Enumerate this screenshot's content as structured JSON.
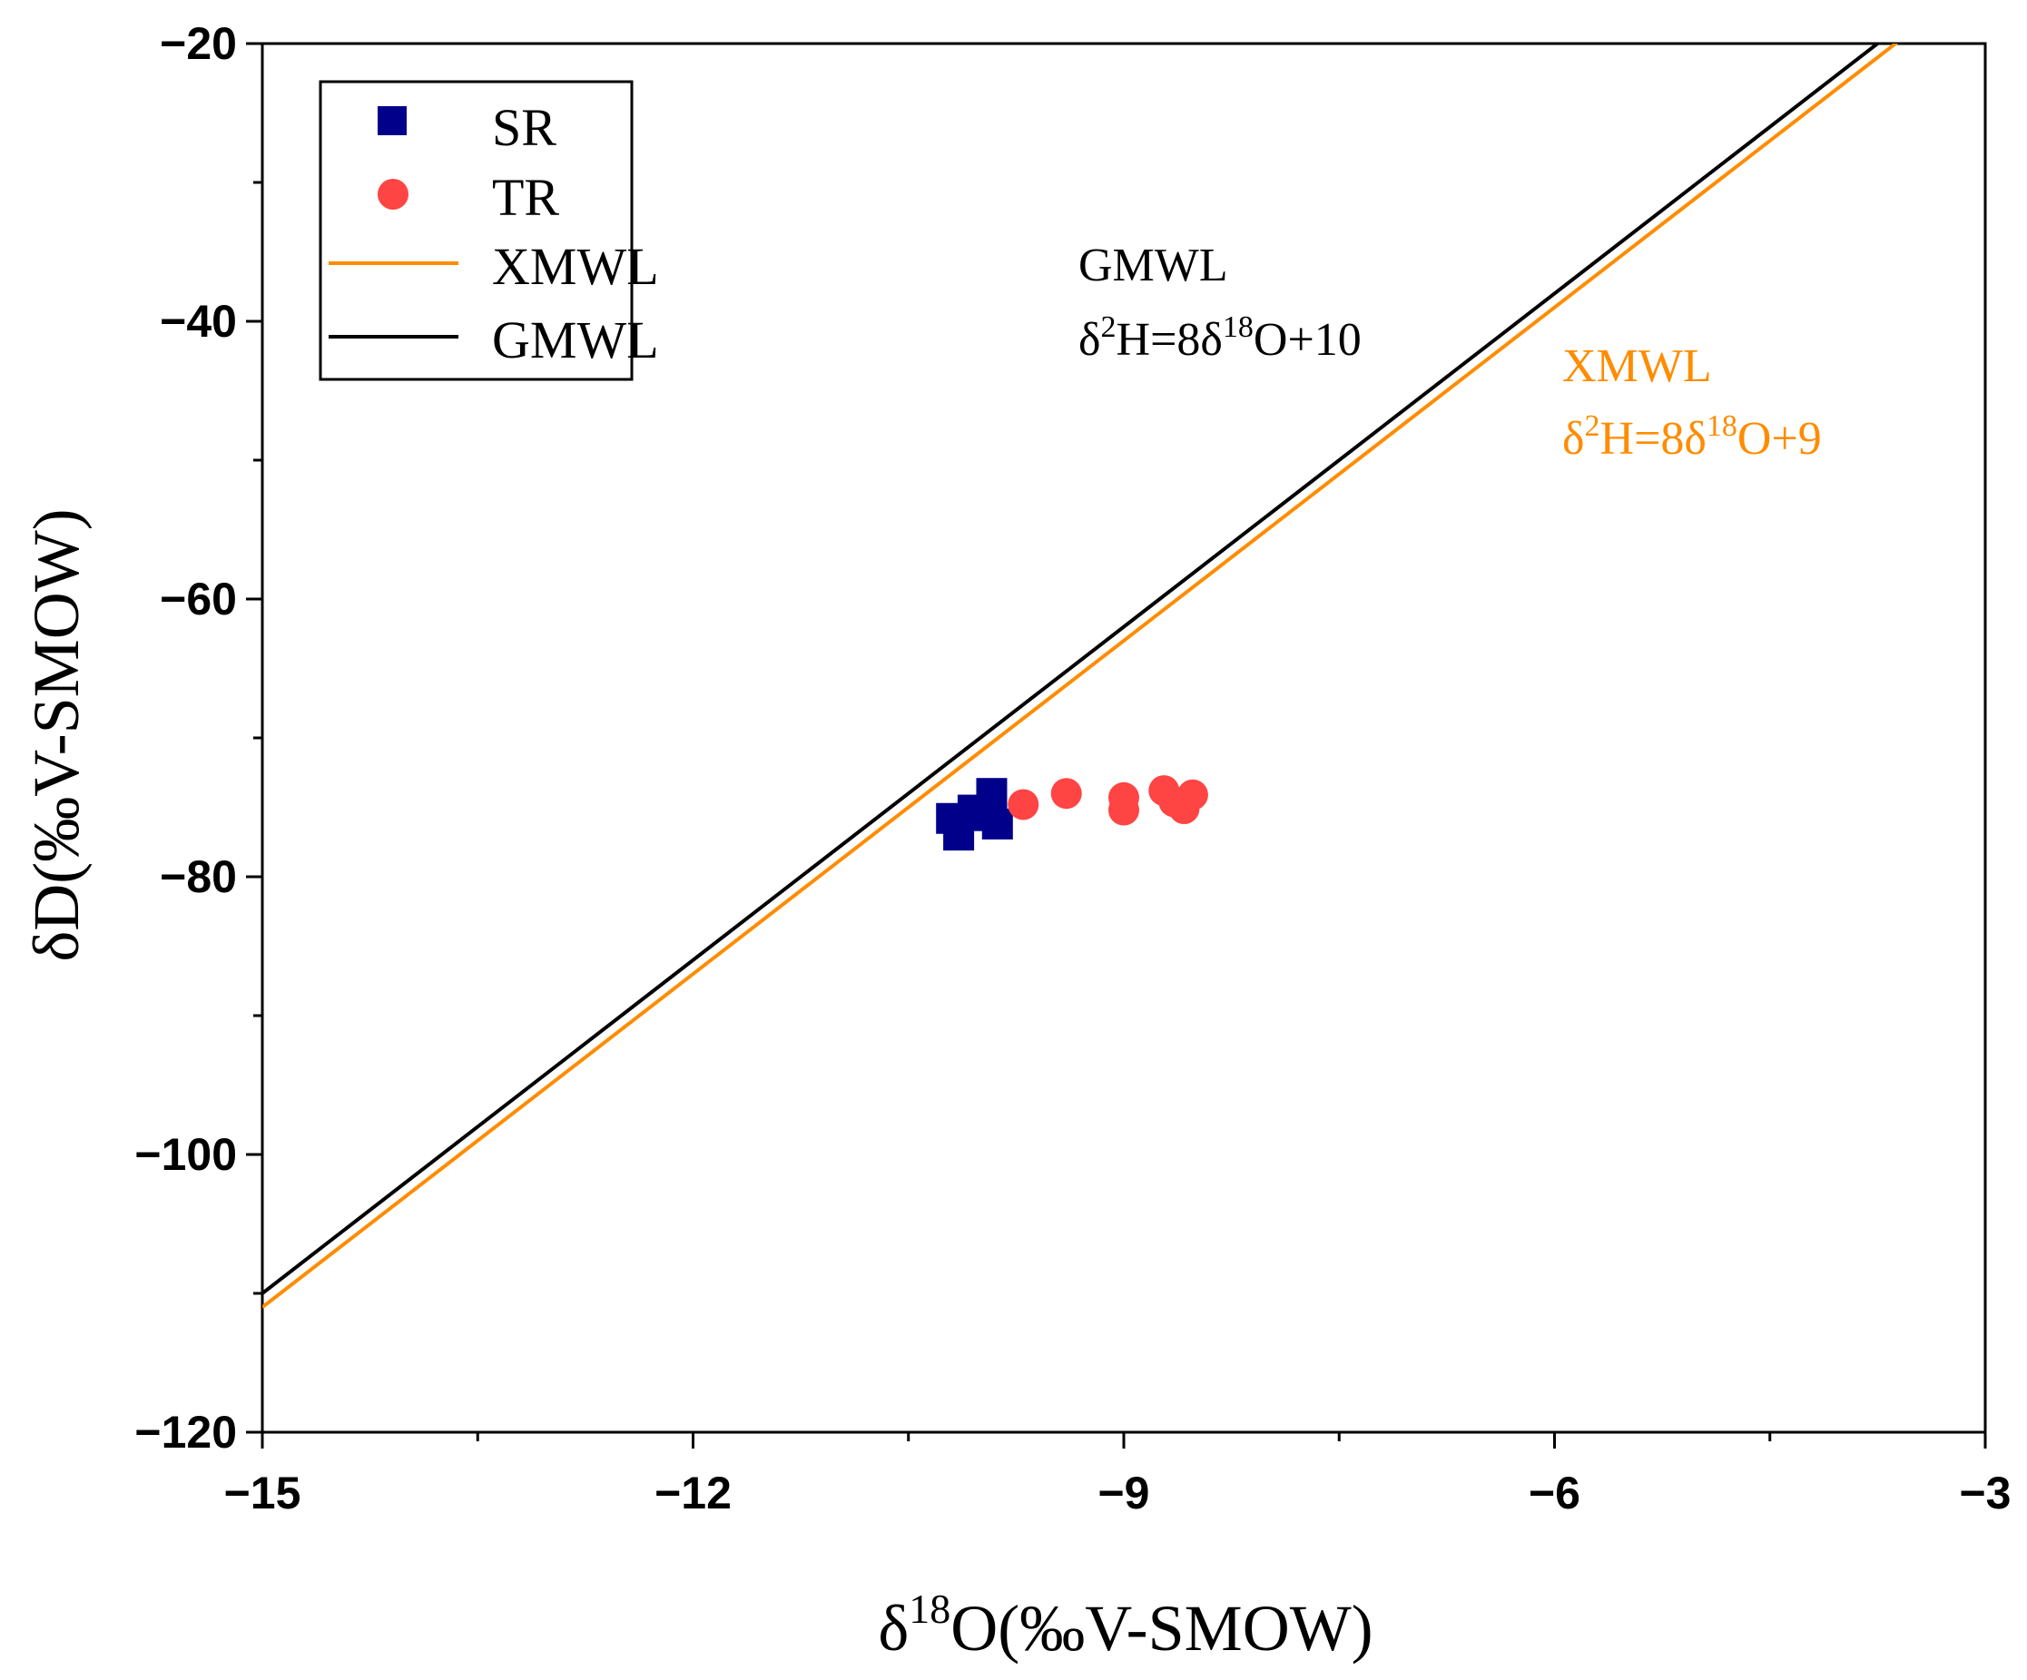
{
  "chart_data": {
    "type": "scatter",
    "title": "",
    "xlabel": "δ18O(‰V-SMOW)",
    "ylabel": "δD(‰V-SMOW)",
    "xlim": [
      -15,
      -3
    ],
    "ylim": [
      -120,
      -20
    ],
    "x_ticks": [
      -15,
      -12,
      -9,
      -6,
      -3
    ],
    "y_ticks": [
      -120,
      -100,
      -80,
      -60,
      -40,
      -20
    ],
    "x_tick_labels": [
      "−15",
      "−12",
      "−9",
      "−6",
      "−3"
    ],
    "y_tick_labels": [
      "−120",
      "−100",
      "−80",
      "−60",
      "−40",
      "−20"
    ],
    "grid": false,
    "legend_position": "top-left",
    "series": [
      {
        "name": "SR",
        "kind": "scatter",
        "marker": "square",
        "color": "#00008B",
        "points": [
          {
            "x": -10.2,
            "y": -75.8
          },
          {
            "x": -10.15,
            "y": -77.0
          },
          {
            "x": -10.05,
            "y": -75.2
          },
          {
            "x": -9.95,
            "y": -75.6
          },
          {
            "x": -9.92,
            "y": -74.0
          },
          {
            "x": -9.88,
            "y": -76.2
          }
        ]
      },
      {
        "name": "TR",
        "kind": "scatter",
        "marker": "circle",
        "color": "#FF4444",
        "points": [
          {
            "x": -9.7,
            "y": -74.8
          },
          {
            "x": -9.4,
            "y": -74.0
          },
          {
            "x": -9.0,
            "y": -74.3
          },
          {
            "x": -9.0,
            "y": -75.2
          },
          {
            "x": -8.72,
            "y": -73.8
          },
          {
            "x": -8.65,
            "y": -74.6
          },
          {
            "x": -8.58,
            "y": -75.1
          },
          {
            "x": -8.52,
            "y": -74.1
          }
        ]
      },
      {
        "name": "XMWL",
        "kind": "line",
        "equation": "δ2H=8δ18O+9",
        "slope": 8,
        "intercept": 9,
        "color": "#FF8C00"
      },
      {
        "name": "GMWL",
        "kind": "line",
        "equation": "δ2H=8δ18O+10",
        "slope": 8,
        "intercept": 10,
        "color": "#000000"
      }
    ],
    "annotations": [
      {
        "id": "gmwl",
        "title": "GMWL",
        "equation": {
          "base1": "δ",
          "sup1": "2",
          "mid": "H=8δ",
          "sup2": "18",
          "tail": "O+10"
        },
        "color": "#000000"
      },
      {
        "id": "xmwl",
        "title": "XMWL",
        "equation": {
          "base1": "δ",
          "sup1": "2",
          "mid": "H=8δ",
          "sup2": "18",
          "tail": "O+9"
        },
        "color": "#FF8C00"
      }
    ],
    "xlabel_parts": {
      "base": "δ",
      "sup": "18",
      "tail": "O(‰V-SMOW)"
    }
  }
}
